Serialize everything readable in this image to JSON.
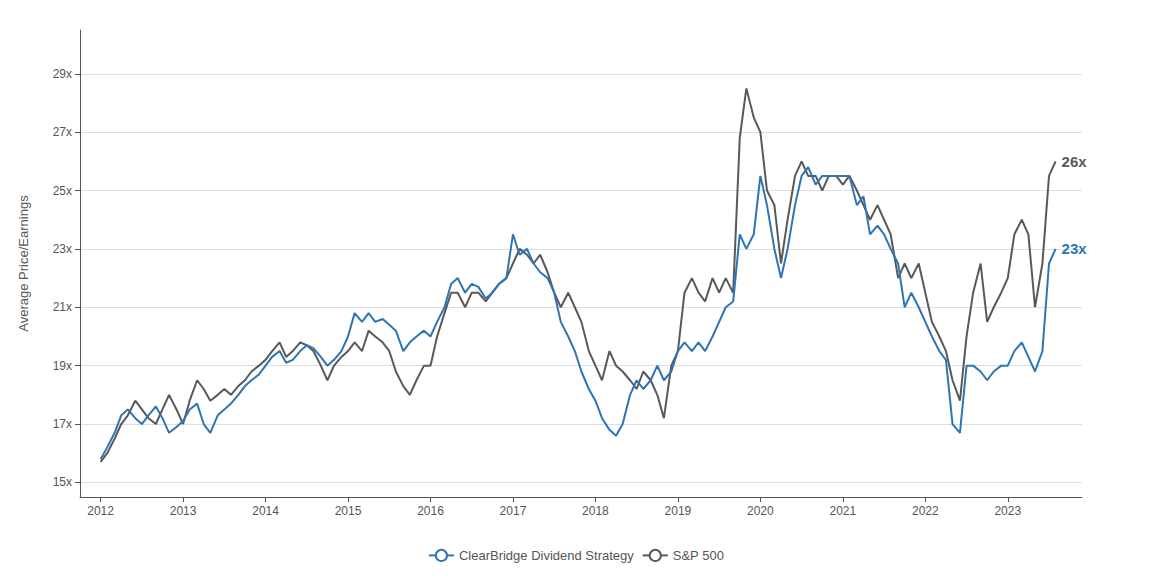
{
  "chart_data": {
    "type": "line",
    "ylabel": "Average Price/Earnings",
    "xlim": [
      2011.75,
      2023.9
    ],
    "xticks": [
      2012,
      2013,
      2014,
      2015,
      2016,
      2017,
      2018,
      2019,
      2020,
      2021,
      2022,
      2023
    ],
    "ylim": [
      14.5,
      30.5
    ],
    "yticks": [
      {
        "value": 15,
        "label": "15x"
      },
      {
        "value": 17,
        "label": "17x"
      },
      {
        "value": 19,
        "label": "19x"
      },
      {
        "value": 21,
        "label": "21x"
      },
      {
        "value": 23,
        "label": "23x"
      },
      {
        "value": 25,
        "label": "25x"
      },
      {
        "value": 27,
        "label": "27x"
      },
      {
        "value": 29,
        "label": "29x"
      }
    ],
    "grid": true,
    "legend": "bottom",
    "x": [
      2012.0,
      2012.08,
      2012.17,
      2012.25,
      2012.33,
      2012.42,
      2012.5,
      2012.58,
      2012.67,
      2012.75,
      2012.83,
      2012.92,
      2013.0,
      2013.08,
      2013.17,
      2013.25,
      2013.33,
      2013.42,
      2013.5,
      2013.58,
      2013.67,
      2013.75,
      2013.83,
      2013.92,
      2014.0,
      2014.08,
      2014.17,
      2014.25,
      2014.33,
      2014.42,
      2014.5,
      2014.58,
      2014.67,
      2014.75,
      2014.83,
      2014.92,
      2015.0,
      2015.08,
      2015.17,
      2015.25,
      2015.33,
      2015.42,
      2015.5,
      2015.58,
      2015.67,
      2015.75,
      2015.83,
      2015.92,
      2016.0,
      2016.08,
      2016.17,
      2016.25,
      2016.33,
      2016.42,
      2016.5,
      2016.58,
      2016.67,
      2016.75,
      2016.83,
      2016.92,
      2017.0,
      2017.08,
      2017.17,
      2017.25,
      2017.33,
      2017.42,
      2017.5,
      2017.58,
      2017.67,
      2017.75,
      2017.83,
      2017.92,
      2018.0,
      2018.08,
      2018.17,
      2018.25,
      2018.33,
      2018.42,
      2018.5,
      2018.58,
      2018.67,
      2018.75,
      2018.83,
      2018.92,
      2019.0,
      2019.08,
      2019.17,
      2019.25,
      2019.33,
      2019.42,
      2019.5,
      2019.58,
      2019.67,
      2019.75,
      2019.83,
      2019.92,
      2020.0,
      2020.08,
      2020.17,
      2020.25,
      2020.33,
      2020.42,
      2020.5,
      2020.58,
      2020.67,
      2020.75,
      2020.83,
      2020.92,
      2021.0,
      2021.08,
      2021.17,
      2021.25,
      2021.33,
      2021.42,
      2021.5,
      2021.58,
      2021.67,
      2021.75,
      2021.83,
      2021.92,
      2022.0,
      2022.08,
      2022.17,
      2022.25,
      2022.33,
      2022.42,
      2022.5,
      2022.58,
      2022.67,
      2022.75,
      2022.83,
      2022.92,
      2023.0,
      2023.08,
      2023.17,
      2023.25,
      2023.33,
      2023.42,
      2023.5,
      2023.58
    ],
    "series": [
      {
        "name": "ClearBridge Dividend Strategy",
        "color": "#2e75b6",
        "values": [
          15.8,
          16.2,
          16.7,
          17.3,
          17.5,
          17.2,
          17.0,
          17.3,
          17.6,
          17.2,
          16.7,
          16.9,
          17.1,
          17.5,
          17.7,
          17.0,
          16.7,
          17.3,
          17.5,
          17.7,
          18.0,
          18.3,
          18.5,
          18.7,
          19.0,
          19.3,
          19.5,
          19.1,
          19.2,
          19.5,
          19.7,
          19.6,
          19.3,
          19.0,
          19.2,
          19.5,
          20.0,
          20.8,
          20.5,
          20.8,
          20.5,
          20.6,
          20.4,
          20.2,
          19.5,
          19.8,
          20.0,
          20.2,
          20.0,
          20.5,
          21.0,
          21.8,
          22.0,
          21.5,
          21.8,
          21.7,
          21.3,
          21.5,
          21.8,
          22.0,
          23.5,
          22.8,
          23.0,
          22.5,
          22.2,
          22.0,
          21.5,
          20.5,
          20.0,
          19.5,
          18.8,
          18.2,
          17.8,
          17.2,
          16.8,
          16.6,
          17.0,
          18.0,
          18.5,
          18.2,
          18.5,
          19.0,
          18.5,
          18.8,
          19.5,
          19.8,
          19.5,
          19.8,
          19.5,
          20.0,
          20.5,
          21.0,
          21.2,
          23.5,
          23.0,
          23.5,
          25.5,
          24.5,
          23.0,
          22.0,
          23.0,
          24.5,
          25.5,
          25.8,
          25.2,
          25.5,
          25.5,
          25.5,
          25.5,
          25.5,
          24.5,
          24.8,
          23.5,
          23.8,
          23.5,
          23.0,
          22.5,
          21.0,
          21.5,
          21.0,
          20.5,
          20.0,
          19.5,
          19.2,
          17.0,
          16.7,
          19.0,
          19.0,
          18.8,
          18.5,
          18.8,
          19.0,
          19.0,
          19.5,
          19.8,
          19.3,
          18.8,
          19.5,
          22.5,
          23.0
        ]
      },
      {
        "name": "S&P 500",
        "color": "#595959",
        "values": [
          15.7,
          16.0,
          16.5,
          17.0,
          17.3,
          17.8,
          17.5,
          17.2,
          17.0,
          17.5,
          18.0,
          17.5,
          17.0,
          17.8,
          18.5,
          18.2,
          17.8,
          18.0,
          18.2,
          18.0,
          18.3,
          18.5,
          18.8,
          19.0,
          19.2,
          19.5,
          19.8,
          19.3,
          19.5,
          19.8,
          19.7,
          19.5,
          19.0,
          18.5,
          19.0,
          19.3,
          19.5,
          19.8,
          19.5,
          20.2,
          20.0,
          19.8,
          19.5,
          18.8,
          18.3,
          18.0,
          18.5,
          19.0,
          19.0,
          20.0,
          20.8,
          21.5,
          21.5,
          21.0,
          21.5,
          21.5,
          21.2,
          21.5,
          21.8,
          22.0,
          22.5,
          23.0,
          22.8,
          22.5,
          22.8,
          22.2,
          21.5,
          21.0,
          21.5,
          21.0,
          20.5,
          19.5,
          19.0,
          18.5,
          19.5,
          19.0,
          18.8,
          18.5,
          18.2,
          18.8,
          18.5,
          18.0,
          17.2,
          19.0,
          19.5,
          21.5,
          22.0,
          21.5,
          21.2,
          22.0,
          21.5,
          22.0,
          21.5,
          26.8,
          28.5,
          27.5,
          27.0,
          25.0,
          24.5,
          22.5,
          24.0,
          25.5,
          26.0,
          25.5,
          25.5,
          25.0,
          25.5,
          25.5,
          25.2,
          25.5,
          25.0,
          24.5,
          24.0,
          24.5,
          24.0,
          23.5,
          22.0,
          22.5,
          22.0,
          22.5,
          21.5,
          20.5,
          20.0,
          19.5,
          18.5,
          17.8,
          20.0,
          21.5,
          22.5,
          20.5,
          21.0,
          21.5,
          22.0,
          23.5,
          24.0,
          23.5,
          21.0,
          22.5,
          25.5,
          26.0
        ]
      }
    ],
    "annotations": [
      {
        "text": "26x",
        "x": 2023.58,
        "y": 26.0,
        "color": "#595959"
      },
      {
        "text": "23x",
        "x": 2023.58,
        "y": 23.0,
        "color": "#2e75b6"
      }
    ]
  }
}
